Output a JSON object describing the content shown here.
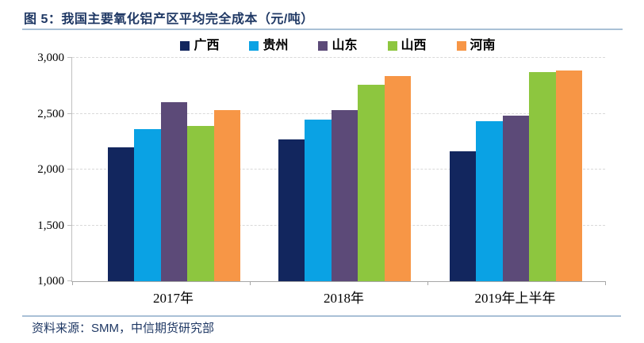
{
  "figure": {
    "title": "图 5：我国主要氧化铝产区平均完全成本（元/吨）",
    "source": "资料来源：SMM，中信期货研究部"
  },
  "style": {
    "title_navy": "#1F3864",
    "rule_blue": "#A9C0D6",
    "grid_gray": "#D9D9D9",
    "axis_gray": "#A6A6A6",
    "label_black": "#000000"
  },
  "chart_data": {
    "type": "bar",
    "title": "我国主要氧化铝产区平均完全成本（元/吨）",
    "categories": [
      "2017年",
      "2018年",
      "2019年上半年"
    ],
    "series": [
      {
        "name": "广西",
        "key": "guangxi",
        "color": "#12265E",
        "values": [
          2200,
          2270,
          2160
        ]
      },
      {
        "name": "贵州",
        "key": "guizhou",
        "color": "#0AA2E4",
        "values": [
          2360,
          2450,
          2430
        ]
      },
      {
        "name": "山东",
        "key": "shandong",
        "color": "#5C4A78",
        "values": [
          2600,
          2530,
          2480
        ]
      },
      {
        "name": "山西",
        "key": "shanxi",
        "color": "#8DC63F",
        "values": [
          2390,
          2760,
          2870
        ]
      },
      {
        "name": "河南",
        "key": "henan",
        "color": "#F79646",
        "values": [
          2530,
          2840,
          2890
        ]
      }
    ],
    "ylim": [
      1000,
      3000
    ],
    "yticks": [
      1000,
      1500,
      2000,
      2500,
      3000
    ],
    "ytick_labels": [
      "1,000",
      "1,500",
      "2,000",
      "2,500",
      "3,000"
    ],
    "xlabel": "",
    "ylabel": "",
    "legend_position": "top-center",
    "grid": "horizontal-dash-dot"
  }
}
